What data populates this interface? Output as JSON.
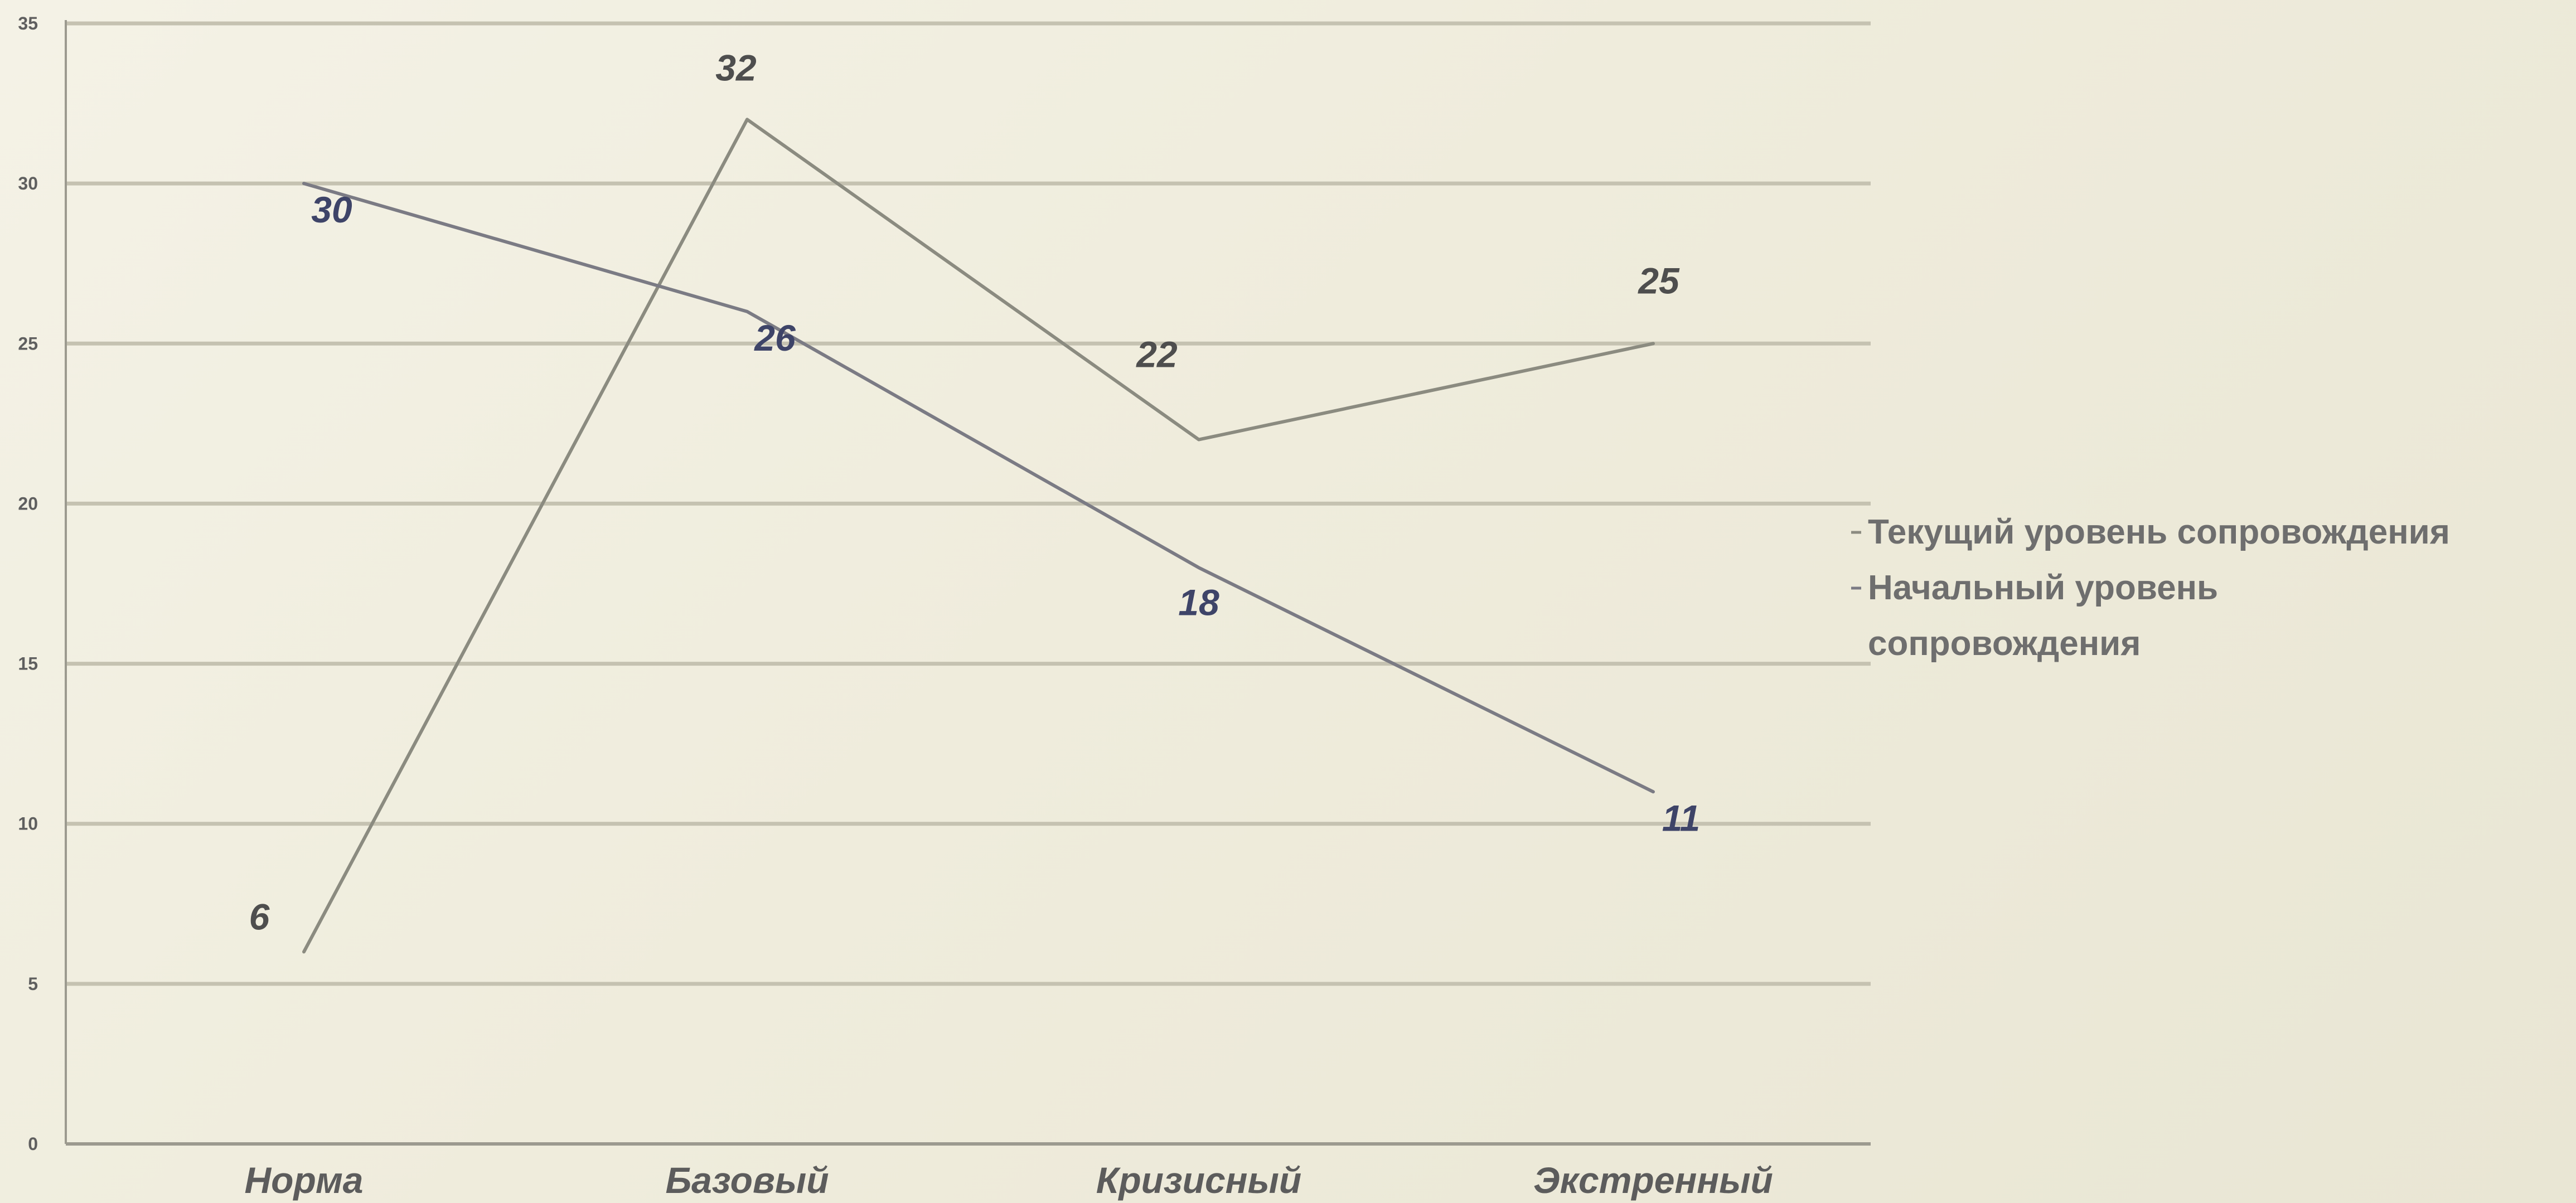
{
  "chart_data": {
    "type": "line",
    "title": "",
    "xlabel": "",
    "ylabel": "",
    "categories": [
      "Норма",
      "Базовый",
      "Кризисный",
      "Экстренный"
    ],
    "ylim": [
      0,
      35
    ],
    "yticks": [
      0,
      5,
      10,
      15,
      20,
      25,
      30,
      35
    ],
    "grid": true,
    "legend_position": "right",
    "series": [
      {
        "name": "Текущий уровень сопровождения",
        "values": [
          6,
          32,
          22,
          25
        ],
        "color": "#8b8b80",
        "label_color": "#4e4e4e"
      },
      {
        "name": "Начальный уровень сопровождения",
        "values": [
          30,
          26,
          18,
          11
        ],
        "color": "#7b7b84",
        "label_color": "#3e4468"
      }
    ]
  },
  "legend": {
    "items": [
      {
        "lines": [
          "Текущий уровень сопровождения"
        ]
      },
      {
        "lines": [
          "Начальный уровень",
          "сопровождения"
        ]
      }
    ]
  },
  "colors": {
    "background": "#f1eedf",
    "gridline": "#c5c2b1",
    "axis": "#9c9a8f"
  }
}
